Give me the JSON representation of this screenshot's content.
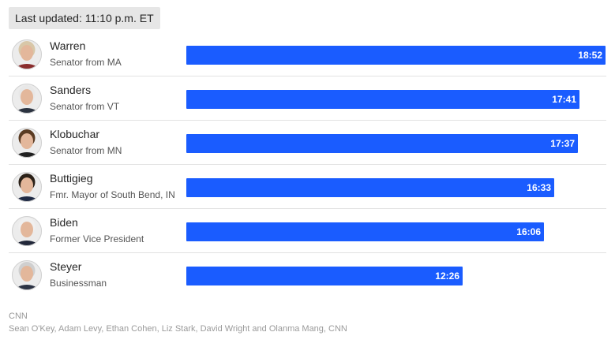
{
  "updated": "Last updated: 11:10 p.m. ET",
  "colors": {
    "bar": "#1a5cff",
    "divider": "#e2e2e2"
  },
  "chart_data": {
    "type": "bar",
    "orientation": "horizontal",
    "unit": "minutes:seconds",
    "categories": [
      "Warren",
      "Sanders",
      "Klobuchar",
      "Buttigieg",
      "Biden",
      "Steyer"
    ],
    "subtitles": [
      "Senator from MA",
      "Senator from VT",
      "Senator from MN",
      "Fmr. Mayor of South Bend, IN",
      "Former Vice President",
      "Businessman"
    ],
    "labels": [
      "18:52",
      "17:41",
      "17:37",
      "16:33",
      "16:06",
      "12:26"
    ],
    "values": [
      1132,
      1061,
      1057,
      993,
      966,
      746
    ],
    "xlim": [
      0,
      1132
    ],
    "rows": [
      {
        "name": "Warren",
        "title": "Senator from MA",
        "label": "18:52",
        "seconds": 1132,
        "avatar": "candidate-photo",
        "hair": "#d8c7a8",
        "top": "#8a2c2c"
      },
      {
        "name": "Sanders",
        "title": "Senator from VT",
        "label": "17:41",
        "seconds": 1061,
        "avatar": "candidate-photo",
        "hair": "#e8e8e8",
        "top": "#2b3340"
      },
      {
        "name": "Klobuchar",
        "title": "Senator from MN",
        "label": "17:37",
        "seconds": 1057,
        "avatar": "candidate-photo",
        "hair": "#5a3b22",
        "top": "#202020"
      },
      {
        "name": "Buttigieg",
        "title": "Fmr. Mayor of South Bend, IN",
        "label": "16:33",
        "seconds": 993,
        "avatar": "candidate-photo",
        "hair": "#2b2118",
        "top": "#1f2a44"
      },
      {
        "name": "Biden",
        "title": "Former Vice President",
        "label": "16:06",
        "seconds": 966,
        "avatar": "candidate-photo",
        "hair": "#f0f0f0",
        "top": "#22283a"
      },
      {
        "name": "Steyer",
        "title": "Businessman",
        "label": "12:26",
        "seconds": 746,
        "avatar": "candidate-photo",
        "hair": "#cfcfcf",
        "top": "#2c3344"
      }
    ]
  },
  "source": "CNN",
  "credits": "Sean O'Key, Adam Levy, Ethan Cohen, Liz Stark, David Wright and Olanma Mang, CNN"
}
